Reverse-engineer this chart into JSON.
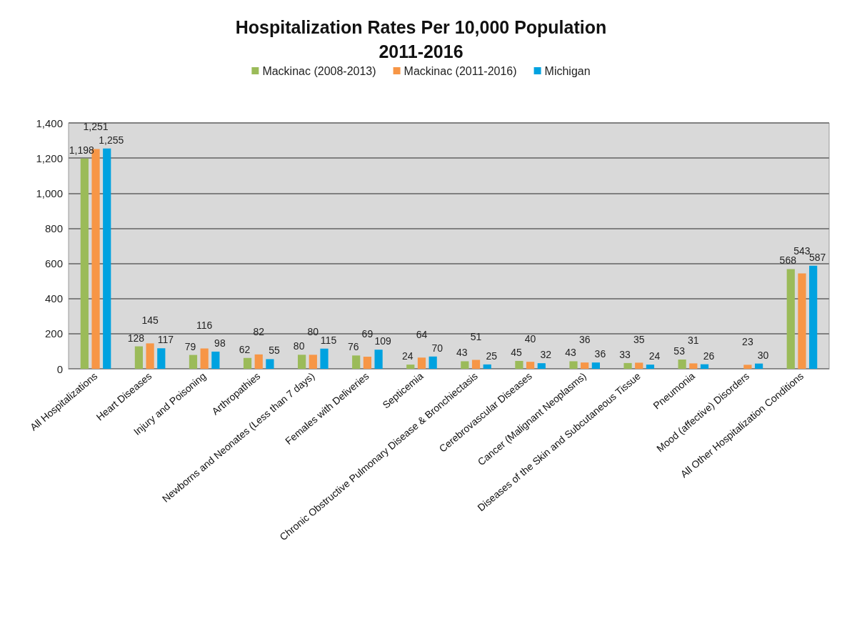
{
  "chart_data": {
    "type": "bar",
    "title": "Hospitalization Rates Per 10,000 Population\n2011-2016",
    "categories": [
      "All Hospitalizations",
      "Heart Diseases",
      "Injury and Poisoning",
      "Arthropathies",
      "Newborns and Neonates (Less than 7 days)",
      "Females with Deliveries",
      "Septicemia",
      "Chronic Obstructive Pulmonary Disease & Bronchiectasis",
      "Cerebrovascular Diseases",
      "Cancer (Malignant Neoplasms)",
      "Diseases of the Skin and Subcutaneous Tissue",
      "Pneumonia",
      "Mood (affective) Disorders",
      "All Other Hospitalization Conditions"
    ],
    "series": [
      {
        "name": "Mackinac (2008-2013)",
        "color": "#9bbb59",
        "values": [
          1198,
          128,
          79,
          62,
          80,
          76,
          24,
          43,
          45,
          43,
          33,
          53,
          null,
          568
        ],
        "value_labels": [
          "1,198",
          "128",
          "79",
          "62",
          "80",
          "76",
          "24",
          "43",
          "45",
          "43",
          "33",
          "53",
          null,
          "568"
        ]
      },
      {
        "name": "Mackinac (2011-2016)",
        "color": "#f79646",
        "values": [
          1251,
          145,
          116,
          82,
          80,
          69,
          64,
          51,
          40,
          36,
          35,
          31,
          23,
          543
        ],
        "value_labels": [
          "1,251",
          "145",
          "116",
          "82",
          "80",
          "69",
          "64",
          "51",
          "40",
          "36",
          "35",
          "31",
          "23",
          "543"
        ]
      },
      {
        "name": "Michigan",
        "color": "#00a2e0",
        "values": [
          1255,
          117,
          98,
          55,
          115,
          109,
          70,
          25,
          32,
          36,
          24,
          26,
          30,
          587
        ],
        "value_labels": [
          "1,255",
          "117",
          "98",
          "55",
          "115",
          "109",
          "70",
          "25",
          "32",
          "36",
          "24",
          "26",
          "30",
          "587"
        ]
      }
    ],
    "ylim": [
      0,
      1400
    ],
    "yticks": [
      0,
      200,
      400,
      600,
      800,
      {
        "value": 1000,
        "label": "1,000"
      },
      {
        "value": 1200,
        "label": "1,200"
      },
      {
        "value": 1400,
        "label": "1,400"
      }
    ],
    "grid": "y",
    "legend": "top"
  }
}
